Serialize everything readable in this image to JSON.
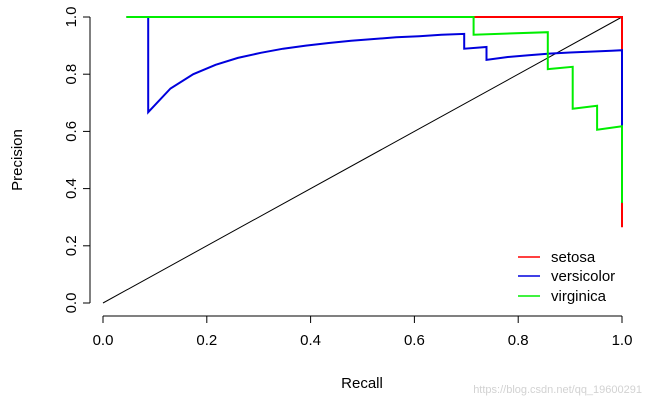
{
  "chart_data": {
    "type": "line",
    "title": "",
    "xlabel": "Recall",
    "ylabel": "Precision",
    "xlim": [
      0,
      1
    ],
    "ylim": [
      0,
      1
    ],
    "xticks": [
      0.0,
      0.2,
      0.4,
      0.6,
      0.8,
      1.0
    ],
    "yticks": [
      0.0,
      0.2,
      0.4,
      0.6,
      0.8,
      1.0
    ],
    "xtick_labels": [
      "0.0",
      "0.2",
      "0.4",
      "0.6",
      "0.8",
      "1.0"
    ],
    "ytick_labels": [
      "0.0",
      "0.2",
      "0.4",
      "0.6",
      "0.8",
      "1.0"
    ],
    "grid": false,
    "legend_position": "bottom-right",
    "legend": [
      {
        "label": "setosa",
        "color": "#ff0000"
      },
      {
        "label": "versicolor",
        "color": "#0000dd"
      },
      {
        "label": "virginica",
        "color": "#00ee00"
      }
    ],
    "series": [
      {
        "label": "diagonal",
        "color": "#000000",
        "x": [
          0.0,
          1.0
        ],
        "y": [
          0.0,
          1.0
        ]
      },
      {
        "label": "setosa",
        "color": "#ff0000",
        "x": [
          0.045,
          1.0,
          1.0
        ],
        "y": [
          1.0,
          1.0,
          0.265
        ]
      },
      {
        "label": "versicolor",
        "color": "#0000dd",
        "x": [
          0.045,
          0.087,
          0.087,
          0.13,
          0.174,
          0.217,
          0.26,
          0.304,
          0.347,
          0.391,
          0.435,
          0.478,
          0.522,
          0.565,
          0.609,
          0.652,
          0.696,
          0.696,
          0.739,
          0.739,
          0.78,
          0.82,
          0.86,
          0.9,
          0.94,
          0.98,
          1.0,
          1.0
        ],
        "y": [
          1.0,
          1.0,
          0.667,
          0.75,
          0.8,
          0.833,
          0.857,
          0.875,
          0.889,
          0.9,
          0.909,
          0.917,
          0.923,
          0.929,
          0.933,
          0.938,
          0.941,
          0.889,
          0.895,
          0.85,
          0.86,
          0.866,
          0.872,
          0.876,
          0.879,
          0.882,
          0.884,
          0.35
        ]
      },
      {
        "label": "virginica",
        "color": "#00ee00",
        "x": [
          0.045,
          0.714,
          0.714,
          0.857,
          0.857,
          0.905,
          0.905,
          0.952,
          0.952,
          1.0,
          1.0
        ],
        "y": [
          1.0,
          1.0,
          0.938,
          0.947,
          0.818,
          0.826,
          0.679,
          0.69,
          0.606,
          0.618,
          0.35
        ]
      }
    ]
  },
  "watermark": "https://blog.csdn.net/qq_19600291"
}
